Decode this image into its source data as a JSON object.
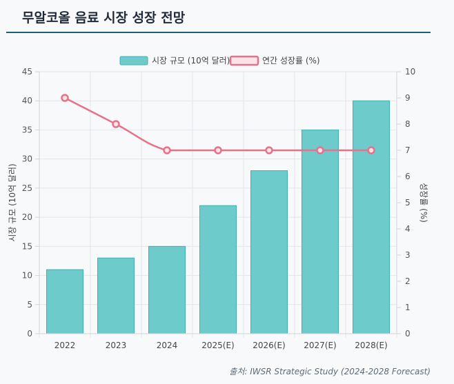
{
  "header": {
    "title": "무알코올 음료 시장 성장 전망"
  },
  "footer": {
    "source": "출처: IWSR Strategic Study (2024-2028 Forecast)"
  },
  "chart_data": {
    "type": "bar",
    "categories": [
      "2022",
      "2023",
      "2024",
      "2025(E)",
      "2026(E)",
      "2027(E)",
      "2028(E)"
    ],
    "series": [
      {
        "name": "시장 규모 (10억 달러)",
        "type": "bar",
        "axis": "left",
        "values": [
          11,
          13,
          15,
          22,
          28,
          35,
          40
        ],
        "color": "#6ecbcb"
      },
      {
        "name": "연간 성장률 (%)",
        "type": "line",
        "axis": "right",
        "values": [
          9,
          8,
          7,
          7,
          7,
          7,
          7
        ],
        "color": "#e8718a"
      }
    ],
    "ylabel": "시장 규모 (10억 달러)",
    "y2label": "성장률 (%)",
    "ylim": [
      0,
      45
    ],
    "y2lim": [
      0,
      10
    ],
    "yticks": [
      "0",
      "5",
      "10",
      "15",
      "20",
      "25",
      "30",
      "35",
      "40",
      "45"
    ],
    "y2ticks": [
      "0",
      "1",
      "2",
      "3",
      "4",
      "5",
      "6",
      "7",
      "8",
      "9",
      "10"
    ],
    "legend": "top-center"
  }
}
